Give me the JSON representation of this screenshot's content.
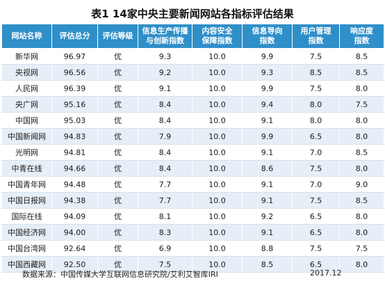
{
  "title": "表1 14家中央主要新闻网站各指标评估结果",
  "headers": [
    {
      "line1": "网站名称",
      "line2": ""
    },
    {
      "line1": "评估总分",
      "line2": ""
    },
    {
      "line1": "评估等级",
      "line2": ""
    },
    {
      "line1": "信息生产传播",
      "line2": "与创新指数"
    },
    {
      "line1": "内容安全",
      "line2": "保障指数"
    },
    {
      "line1": "信息导向",
      "line2": "指数"
    },
    {
      "line1": "用户管理",
      "line2": "指数"
    },
    {
      "line1": "响应度",
      "line2": "指数"
    }
  ],
  "rows": [
    {
      "name": "新华网",
      "score": "96.97",
      "grade": "优",
      "innovation": "9.3",
      "security": "10.0",
      "guidance": "9.9",
      "user_mgmt": "7.5",
      "response": "8.5"
    },
    {
      "name": "央视网",
      "score": "96.56",
      "grade": "优",
      "innovation": "9.2",
      "security": "10.0",
      "guidance": "9.3",
      "user_mgmt": "8.5",
      "response": "8.5"
    },
    {
      "name": "人民网",
      "score": "96.39",
      "grade": "优",
      "innovation": "9.1",
      "security": "10.0",
      "guidance": "9.9",
      "user_mgmt": "7.5",
      "response": "8.0"
    },
    {
      "name": "央广网",
      "score": "95.16",
      "grade": "优",
      "innovation": "8.4",
      "security": "10.0",
      "guidance": "9.4",
      "user_mgmt": "8.0",
      "response": "7.5"
    },
    {
      "name": "中国网",
      "score": "95.03",
      "grade": "优",
      "innovation": "8.4",
      "security": "10.0",
      "guidance": "9.1",
      "user_mgmt": "8.0",
      "response": "8.0"
    },
    {
      "name": "中国新闻网",
      "score": "94.83",
      "grade": "优",
      "innovation": "7.9",
      "security": "10.0",
      "guidance": "9.9",
      "user_mgmt": "6.5",
      "response": "8.0"
    },
    {
      "name": "光明网",
      "score": "94.81",
      "grade": "优",
      "innovation": "8.4",
      "security": "10.0",
      "guidance": "9.1",
      "user_mgmt": "7.0",
      "response": "8.5"
    },
    {
      "name": "中青在线",
      "score": "94.66",
      "grade": "优",
      "innovation": "8.4",
      "security": "10.0",
      "guidance": "8.6",
      "user_mgmt": "7.5",
      "response": "8.0"
    },
    {
      "name": "中国青年网",
      "score": "94.48",
      "grade": "优",
      "innovation": "7.7",
      "security": "10.0",
      "guidance": "9.1",
      "user_mgmt": "7.0",
      "response": "9.0"
    },
    {
      "name": "中国日报网",
      "score": "94.38",
      "grade": "优",
      "innovation": "7.7",
      "security": "10.0",
      "guidance": "9.1",
      "user_mgmt": "7.5",
      "response": "8.5"
    },
    {
      "name": "国际在线",
      "score": "94.09",
      "grade": "优",
      "innovation": "8.1",
      "security": "10.0",
      "guidance": "9.2",
      "user_mgmt": "6.5",
      "response": "8.0"
    },
    {
      "name": "中国经济网",
      "score": "94.00",
      "grade": "优",
      "innovation": "8.3",
      "security": "10.0",
      "guidance": "9.1",
      "user_mgmt": "6.5",
      "response": "8.0"
    },
    {
      "name": "中国台湾网",
      "score": "92.64",
      "grade": "优",
      "innovation": "6.9",
      "security": "10.0",
      "guidance": "8.8",
      "user_mgmt": "7.5",
      "response": "7.5"
    },
    {
      "name": "中国西藏网",
      "score": "92.50",
      "grade": "优",
      "innovation": "7.5",
      "security": "10.0",
      "guidance": "8.5",
      "user_mgmt": "6.5",
      "response": "8.0"
    }
  ],
  "footer": {
    "source": "数据来源：中国传媒大学互联网信息研究院/艾利艾智库IRI",
    "date": "2017.12"
  },
  "colors": {
    "header_bg": "#2f8fc9",
    "header_text": "#ffffff",
    "row_odd": "#ffffff",
    "row_even": "#e6eff7"
  }
}
